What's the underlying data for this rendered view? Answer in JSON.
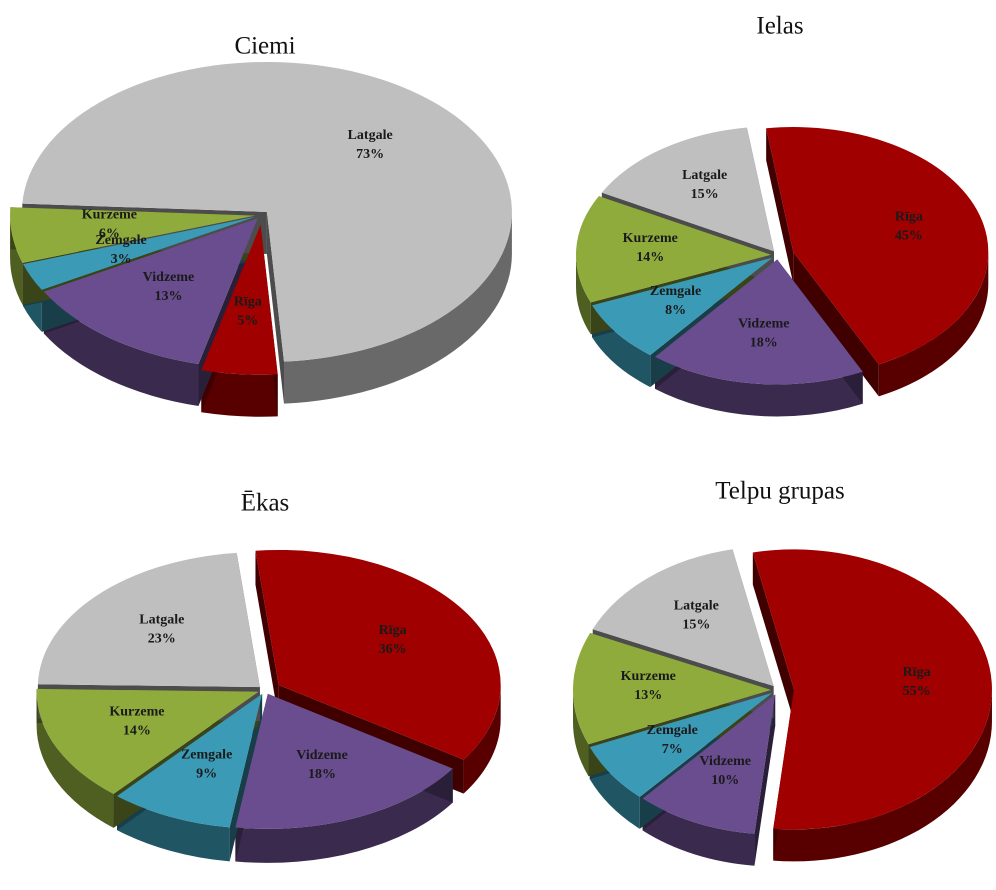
{
  "chart_data": [
    {
      "type": "pie",
      "title": "Ciemi",
      "categories": [
        "Rīga",
        "Vidzeme",
        "Zemgale",
        "Kurzeme",
        "Latgale"
      ],
      "values": [
        5,
        13,
        3,
        6,
        73
      ],
      "value_labels": [
        "5%",
        "13%",
        "3%",
        "6%",
        "73%"
      ],
      "colors": [
        "#a00000",
        "#6a4d8e",
        "#3b9bb6",
        "#8fab3c",
        "#bfbfbf"
      ]
    },
    {
      "type": "pie",
      "title": "Ielas",
      "categories": [
        "Rīga",
        "Vidzeme",
        "Zemgale",
        "Kurzeme",
        "Latgale"
      ],
      "values": [
        45,
        18,
        8,
        14,
        15
      ],
      "value_labels": [
        "45%",
        "18%",
        "8%",
        "14%",
        "15%"
      ],
      "colors": [
        "#a00000",
        "#6a4d8e",
        "#3b9bb6",
        "#8fab3c",
        "#bfbfbf"
      ]
    },
    {
      "type": "pie",
      "title": "Ēkas",
      "categories": [
        "Rīga",
        "Vidzeme",
        "Zemgale",
        "Kurzeme",
        "Latgale"
      ],
      "values": [
        36,
        18,
        9,
        14,
        23
      ],
      "value_labels": [
        "36%",
        "18%",
        "9%",
        "14%",
        "23%"
      ],
      "colors": [
        "#a00000",
        "#6a4d8e",
        "#3b9bb6",
        "#8fab3c",
        "#bfbfbf"
      ]
    },
    {
      "type": "pie",
      "title": "Telpu grupas",
      "categories": [
        "Rīga",
        "Vidzeme",
        "Zemgale",
        "Kurzeme",
        "Latgale"
      ],
      "values": [
        55,
        10,
        7,
        13,
        15
      ],
      "value_labels": [
        "55%",
        "10%",
        "7%",
        "13%",
        "15%"
      ],
      "colors": [
        "#a00000",
        "#6a4d8e",
        "#3b9bb6",
        "#8fab3c",
        "#bfbfbf"
      ]
    }
  ]
}
